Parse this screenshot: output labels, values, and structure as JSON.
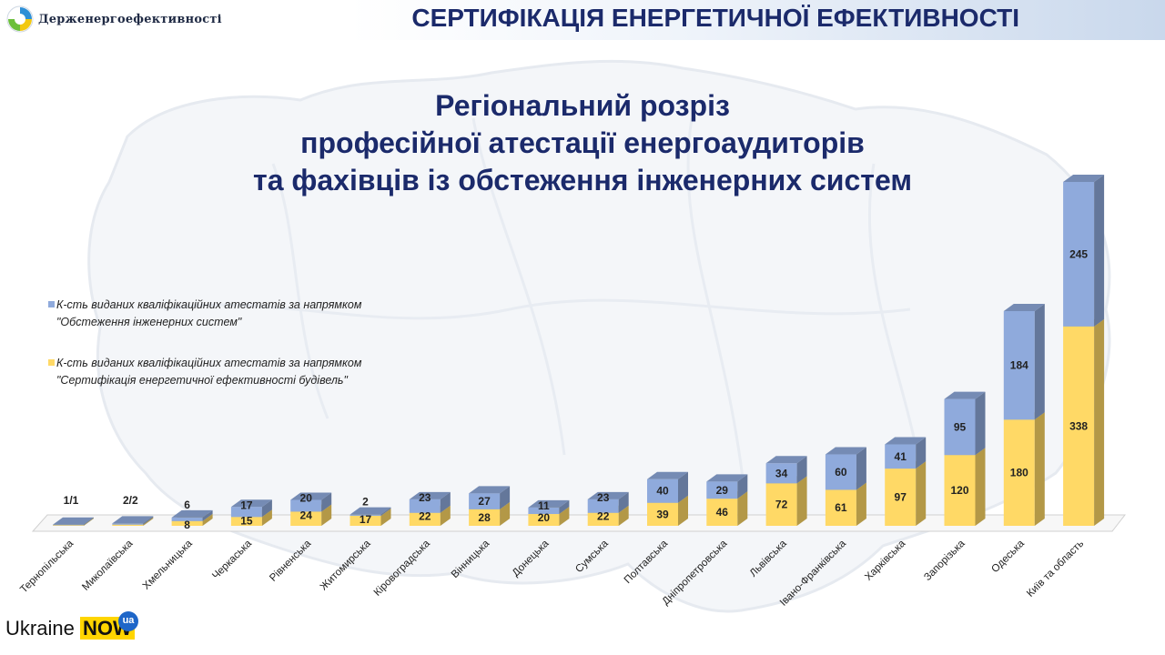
{
  "header": {
    "logo_text": "Держенергоефективності",
    "title": "СЕРТИФІКАЦІЯ ЕНЕРГЕТИЧНОЇ ЕФЕКТИВНОСТІ"
  },
  "brand": {
    "word": "Ukraine",
    "now": "NOW",
    "badge": "ua"
  },
  "colors": {
    "accent": "#1b2a6b",
    "series_inspection": "#8faadc",
    "series_certification": "#ffd966"
  },
  "chart_data": {
    "type": "bar",
    "stacked": true,
    "three_d": true,
    "title": [
      "Регіональний розріз",
      "професійної атестації енергоаудиторів",
      "та фахівців із обстеження інженерних систем"
    ],
    "legend_position": "left",
    "grid": false,
    "categories": [
      "Тернопільська",
      "Миколаївська",
      "Хмельницька",
      "Черкаська",
      "Рівненська",
      "Житомирська",
      "Кіровоградська",
      "Вінницька",
      "Донецька",
      "Сумська",
      "Полтавська",
      "Дніпропетровська",
      "Львівська",
      "Івано-Франківська",
      "Харківська",
      "Запорізька",
      "Одеська",
      "Київ та область"
    ],
    "series": [
      {
        "name": "К-сть виданих кваліфікаційних атестатів за напрямком \"Сертифікація енергетичної ефективності будівель\"",
        "values": [
          1,
          2,
          8,
          15,
          24,
          17,
          22,
          28,
          20,
          22,
          39,
          46,
          72,
          61,
          97,
          120,
          180,
          338
        ]
      },
      {
        "name": "К-сть виданих кваліфікаційних атестатів за напрямком \"Обстеження інженерних систем\"",
        "values": [
          1,
          2,
          6,
          17,
          20,
          2,
          23,
          27,
          11,
          23,
          40,
          29,
          34,
          60,
          41,
          95,
          184,
          245
        ]
      }
    ],
    "data_labels": [
      "1/1",
      "2/2",
      null,
      null,
      null,
      null,
      null,
      null,
      null,
      null,
      null,
      null,
      null,
      null,
      null,
      null,
      null,
      null
    ],
    "ylim": [
      0,
      583
    ]
  }
}
